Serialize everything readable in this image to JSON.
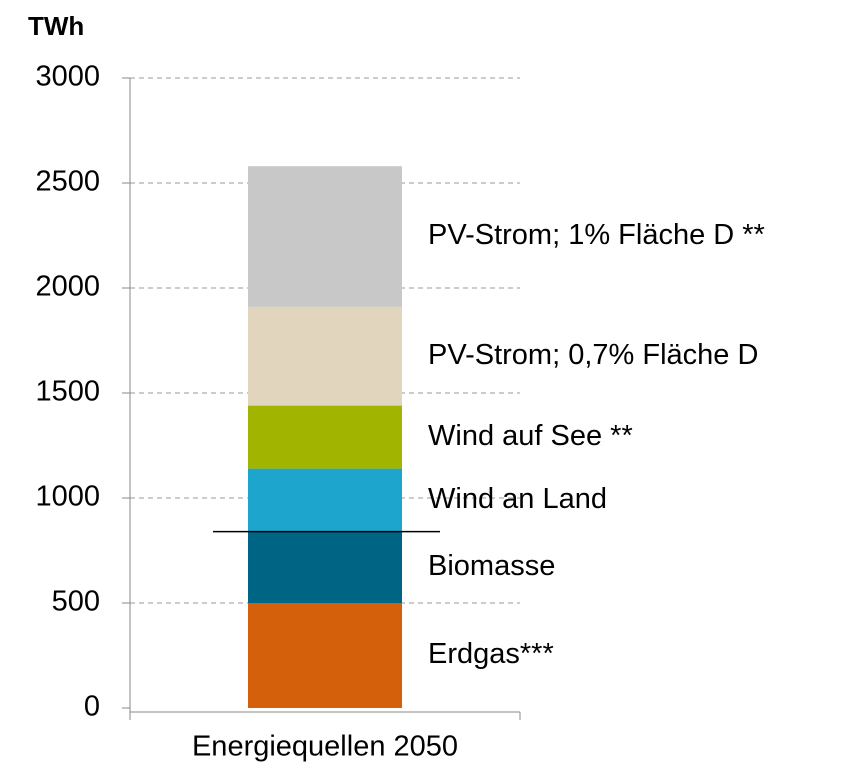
{
  "chart_data": {
    "type": "stacked_bar",
    "y_axis_label": "TWh",
    "categories": [
      "Energiequellen 2050"
    ],
    "series": [
      {
        "name": "Erdgas***",
        "color": "#d4600c",
        "values": [
          500
        ]
      },
      {
        "name": "Biomasse",
        "color": "#006484",
        "values": [
          340
        ]
      },
      {
        "name": "Wind an Land",
        "color": "#1ea5cd",
        "values": [
          300
        ]
      },
      {
        "name": "Wind auf See **",
        "color": "#a0b400",
        "values": [
          300
        ]
      },
      {
        "name": "PV-Strom; 0,7% Fläche D",
        "color": "#e1d6bd",
        "values": [
          470
        ]
      },
      {
        "name": "PV-Strom; 1% Fläche D **",
        "color": "#c8c8c8",
        "values": [
          670
        ]
      }
    ],
    "reference_line": 840,
    "ylim": [
      0,
      3000
    ],
    "yticks": [
      0,
      500,
      1000,
      1500,
      2000,
      2500,
      3000
    ],
    "grid": true
  }
}
